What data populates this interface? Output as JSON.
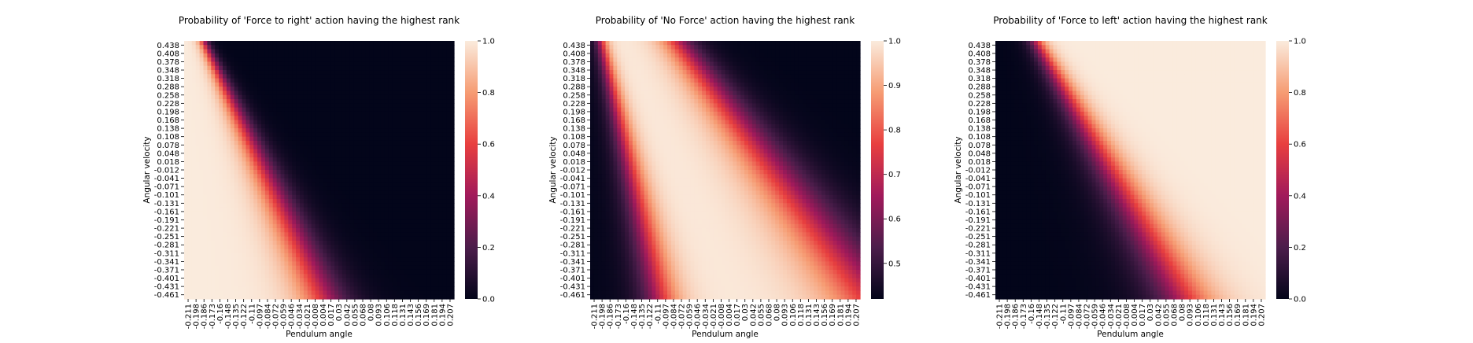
{
  "chart_data": [
    {
      "type": "heatmap",
      "title": "Probability of 'Force to right' action having the highest rank",
      "xlabel": "Pendulum angle",
      "ylabel": "Angular velocity",
      "colorbar": {
        "ticks": [
          "0.0",
          "0.2",
          "0.4",
          "0.6",
          "0.8",
          "1.0"
        ],
        "range": [
          0,
          1
        ]
      },
      "x_ticks": [
        "-0.211",
        "-0.198",
        "-0.186",
        "-0.173",
        "-0.16",
        "-0.148",
        "-0.135",
        "-0.122",
        "-0.11",
        "-0.097",
        "-0.084",
        "-0.072",
        "-0.059",
        "-0.046",
        "-0.034",
        "-0.021",
        "-0.008",
        "0.004",
        "0.017",
        "0.03",
        "0.042",
        "0.055",
        "0.068",
        "0.08",
        "0.093",
        "0.106",
        "0.118",
        "0.131",
        "0.143",
        "0.156",
        "0.169",
        "0.181",
        "0.194",
        "0.207"
      ],
      "y_ticks": [
        "0.438",
        "0.408",
        "0.378",
        "0.348",
        "0.318",
        "0.288",
        "0.258",
        "0.228",
        "0.198",
        "0.168",
        "0.138",
        "0.108",
        "0.078",
        "0.048",
        "0.018",
        "-0.012",
        "-0.041",
        "-0.071",
        "-0.101",
        "-0.131",
        "-0.161",
        "-0.191",
        "-0.221",
        "-0.251",
        "-0.281",
        "-0.311",
        "-0.341",
        "-0.371",
        "-0.401",
        "-0.431",
        "-0.461"
      ],
      "pattern": "high (1.0) for left/low-angle region, sharp diagonal transition to 0.0 toward right"
    },
    {
      "type": "heatmap",
      "title": "Probability of 'No Force' action having the highest rank",
      "xlabel": "Pendulum angle",
      "ylabel": "Angular velocity",
      "colorbar": {
        "ticks": [
          "0.5",
          "0.6",
          "0.7",
          "0.8",
          "0.9",
          "1.0"
        ],
        "range": [
          0.42,
          1.0
        ]
      },
      "x_ticks": [
        "-0.211",
        "-0.198",
        "-0.186",
        "-0.173",
        "-0.16",
        "-0.148",
        "-0.135",
        "-0.122",
        "-0.11",
        "-0.097",
        "-0.084",
        "-0.072",
        "-0.059",
        "-0.046",
        "-0.034",
        "-0.021",
        "-0.008",
        "0.004",
        "0.017",
        "0.03",
        "0.042",
        "0.055",
        "0.068",
        "0.08",
        "0.093",
        "0.106",
        "0.118",
        "0.131",
        "0.143",
        "0.156",
        "0.169",
        "0.181",
        "0.194",
        "0.207"
      ],
      "y_ticks": [
        "0.438",
        "0.408",
        "0.378",
        "0.348",
        "0.318",
        "0.288",
        "0.258",
        "0.228",
        "0.198",
        "0.168",
        "0.138",
        "0.108",
        "0.078",
        "0.048",
        "0.018",
        "-0.012",
        "-0.041",
        "-0.071",
        "-0.101",
        "-0.131",
        "-0.161",
        "-0.191",
        "-0.221",
        "-0.251",
        "-0.281",
        "-0.311",
        "-0.341",
        "-0.371",
        "-0.401",
        "-0.431",
        "-0.461"
      ],
      "pattern": "diagonal band of high probability between two lower regions"
    },
    {
      "type": "heatmap",
      "title": "Probability of 'Force to left' action having the highest rank",
      "xlabel": "Pendulum angle",
      "ylabel": "Angular velocity",
      "colorbar": {
        "ticks": [
          "0.0",
          "0.2",
          "0.4",
          "0.6",
          "0.8",
          "1.0"
        ],
        "range": [
          0,
          1
        ]
      },
      "x_ticks": [
        "-0.211",
        "-0.198",
        "-0.186",
        "-0.173",
        "-0.16",
        "-0.148",
        "-0.135",
        "-0.122",
        "-0.11",
        "-0.097",
        "-0.084",
        "-0.072",
        "-0.059",
        "-0.046",
        "-0.034",
        "-0.021",
        "-0.008",
        "0.004",
        "0.017",
        "0.03",
        "0.042",
        "0.055",
        "0.068",
        "0.08",
        "0.093",
        "0.106",
        "0.118",
        "0.131",
        "0.143",
        "0.156",
        "0.169",
        "0.181",
        "0.194",
        "0.207"
      ],
      "y_ticks": [
        "0.438",
        "0.408",
        "0.378",
        "0.348",
        "0.318",
        "0.288",
        "0.258",
        "0.228",
        "0.198",
        "0.168",
        "0.138",
        "0.108",
        "0.078",
        "0.048",
        "0.018",
        "-0.012",
        "-0.041",
        "-0.071",
        "-0.101",
        "-0.131",
        "-0.161",
        "-0.191",
        "-0.221",
        "-0.251",
        "-0.281",
        "-0.311",
        "-0.341",
        "-0.371",
        "-0.401",
        "-0.431",
        "-0.461"
      ],
      "pattern": "low (0.0) for left region, diagonal smooth transition to 1.0 toward right"
    }
  ]
}
